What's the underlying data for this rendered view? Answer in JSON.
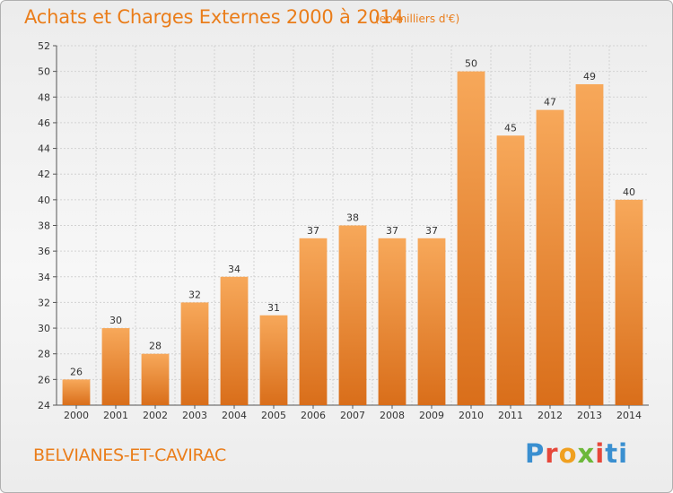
{
  "header": {
    "title": "Achats et Charges Externes 2000 à 2014",
    "subtitle": "(en milliers d'€)"
  },
  "footer": {
    "place_name": "BELVIANES-ET-CAVIRAC",
    "logo_text": "Proxiti"
  },
  "colors": {
    "bar_light": "#f7a85a",
    "bar_dark": "#d96e1a",
    "title": "#ea7d1a"
  },
  "chart_data": {
    "type": "bar",
    "title": "Achats et Charges Externes 2000 à 2014",
    "subtitle": "(en milliers d'€)",
    "categories": [
      "2000",
      "2001",
      "2002",
      "2003",
      "2004",
      "2005",
      "2006",
      "2007",
      "2008",
      "2009",
      "2010",
      "2011",
      "2012",
      "2013",
      "2014"
    ],
    "values": [
      26,
      30,
      28,
      32,
      34,
      31,
      37,
      38,
      37,
      37,
      50,
      45,
      47,
      49,
      40
    ],
    "ylim": [
      24,
      52
    ],
    "yticks": [
      24,
      26,
      28,
      30,
      32,
      34,
      36,
      38,
      40,
      42,
      44,
      46,
      48,
      50,
      52
    ],
    "grid": true,
    "data_labels": true
  }
}
